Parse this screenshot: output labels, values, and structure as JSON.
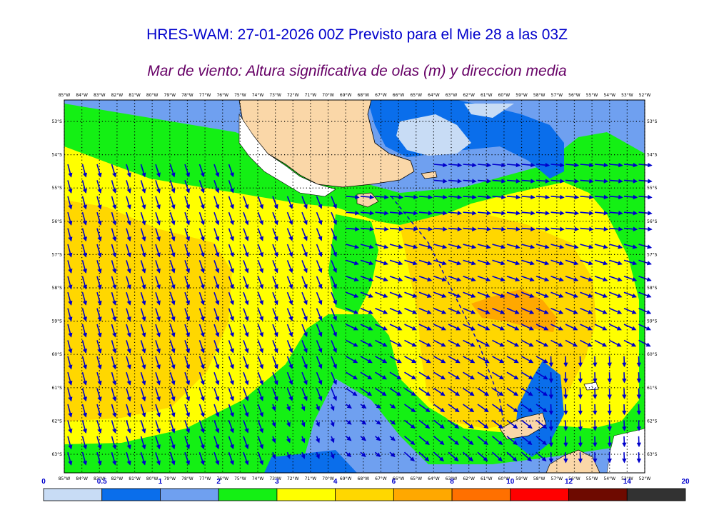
{
  "header": {
    "title": "HRES-WAM: 27-01-2026 00Z Previsto para el Mie 28 a las 03Z",
    "subtitle": "Mar de viento: Altura significativa de olas (m) y direccion media"
  },
  "map": {
    "lon_labels": [
      "85°W",
      "84°W",
      "83°W",
      "82°W",
      "81°W",
      "80°W",
      "79°W",
      "78°W",
      "77°W",
      "76°W",
      "75°W",
      "74°W",
      "73°W",
      "72°W",
      "71°W",
      "70°W",
      "69°W",
      "68°W",
      "67°W",
      "66°W",
      "65°W",
      "64°W",
      "63°W",
      "62°W",
      "61°W",
      "60°W",
      "59°W",
      "58°W",
      "57°W",
      "56°W",
      "55°W",
      "54°W",
      "53°W",
      "52°W"
    ],
    "lat_labels": [
      "53°S",
      "54°S",
      "55°S",
      "56°S",
      "57°S",
      "58°S",
      "59°S",
      "60°S",
      "61°S",
      "62°S",
      "63°S"
    ]
  },
  "colorbar": {
    "ticks": [
      "0",
      "0.5",
      "1",
      "2",
      "3",
      "4",
      "6",
      "8",
      "10",
      "12",
      "14",
      "20"
    ],
    "colors": [
      "#c8dcf5",
      "#0a6eeb",
      "#6fa0f0",
      "#14f014",
      "#ffff00",
      "#ffd700",
      "#ffa800",
      "#ff7000",
      "#ff0000",
      "#6e0a00",
      "#323232"
    ]
  },
  "palette": {
    "land": "#fad7a8",
    "ice": "#ffffff",
    "arrow": "#0000cc"
  }
}
